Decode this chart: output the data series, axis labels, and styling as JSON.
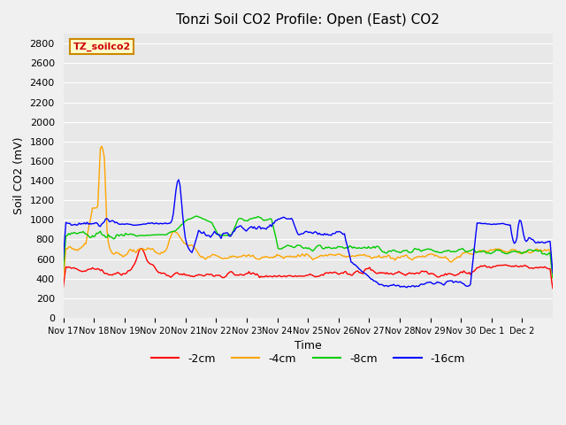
{
  "title": "Tonzi Soil CO2 Profile: Open (East) CO2",
  "ylabel": "Soil CO2 (mV)",
  "xlabel": "Time",
  "ylim": [
    0,
    2900
  ],
  "yticks": [
    0,
    200,
    400,
    600,
    800,
    1000,
    1200,
    1400,
    1600,
    1800,
    2000,
    2200,
    2400,
    2600,
    2800
  ],
  "bg_color": "#e8e8e8",
  "plot_bg_color": "#e8e8e8",
  "series_colors": {
    "2cm": "#ff0000",
    "4cm": "#ffa500",
    "8cm": "#00cc00",
    "16cm": "#0000ff"
  },
  "legend_label": "TZ_soilco2",
  "legend_label_color": "#cc0000",
  "x_tick_labels": [
    "Nov 17",
    "Nov 18",
    "Nov 19",
    "Nov 20",
    "Nov 21",
    "Nov 22",
    "Nov 23",
    "Nov 24",
    "Nov 25",
    "Nov 26",
    "Nov 27",
    "Nov 28",
    "Nov 29",
    "Nov 30",
    "Dec 1",
    "Dec 2"
  ],
  "n_points": 370
}
